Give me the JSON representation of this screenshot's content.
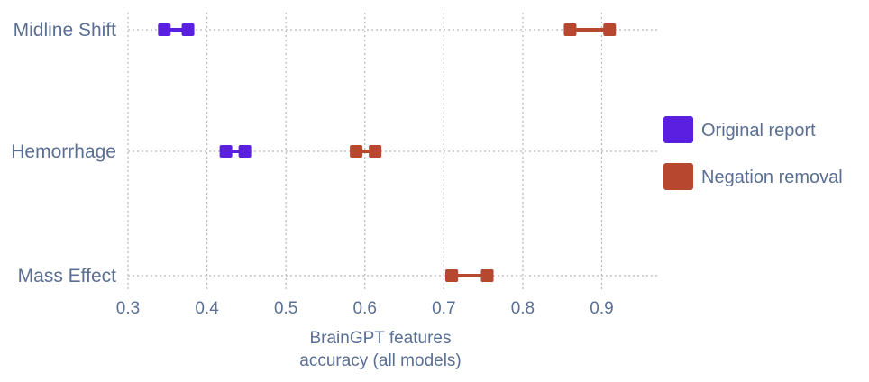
{
  "chart_data": {
    "type": "dumbbell",
    "title": "",
    "xlabel": [
      "BrainGPT features",
      "accuracy (all models)"
    ],
    "ylabel": "",
    "xlim": [
      0.3,
      0.97
    ],
    "xticks": [
      0.3,
      0.4,
      0.5,
      0.6,
      0.7,
      0.8,
      0.9
    ],
    "xtick_labels": [
      "0.3",
      "0.4",
      "0.5",
      "0.6",
      "0.7",
      "0.8",
      "0.9"
    ],
    "grid": true,
    "legend_position": "right",
    "categories": [
      "Midline Shift",
      "Hemorrhage",
      "Mass Effect"
    ],
    "series": [
      {
        "name": "Original report",
        "color": "#5a1fe0",
        "ranges": [
          [
            0.346,
            0.376
          ],
          [
            0.424,
            0.448
          ],
          [
            0.71,
            0.755
          ]
        ]
      },
      {
        "name": "Negation removal",
        "color": "#b8472f",
        "ranges": [
          [
            0.86,
            0.91
          ],
          [
            0.589,
            0.613
          ],
          [
            0.71,
            0.755
          ]
        ]
      }
    ]
  }
}
